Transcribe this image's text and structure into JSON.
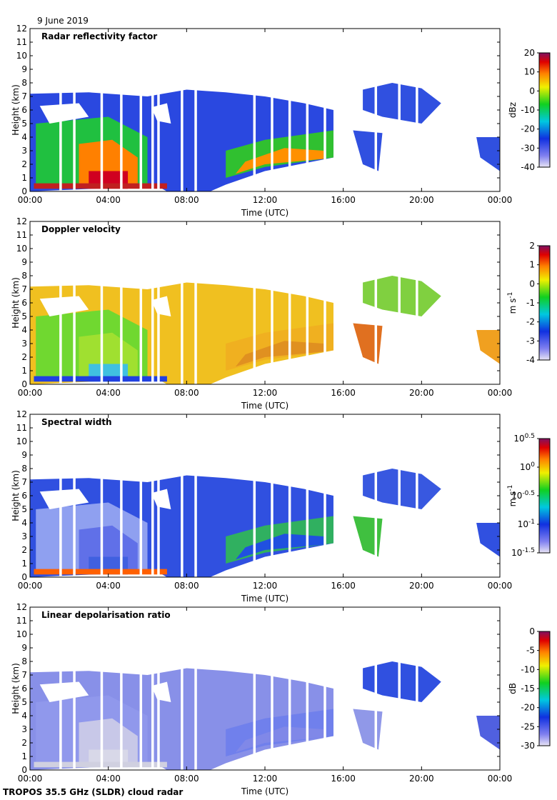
{
  "date": "9 June 2019",
  "footer": "TROPOS 35.5 GHz (SLDR) cloud radar",
  "chart_data": [
    {
      "type": "heatmap",
      "title": "Radar reflectivity factor",
      "xlabel": "Time (UTC)",
      "ylabel": "Height (km)",
      "xlim": [
        0,
        24
      ],
      "xticks": [
        {
          "value": 0,
          "label": "00:00"
        },
        {
          "value": 4,
          "label": "04:00"
        },
        {
          "value": 8,
          "label": "08:00"
        },
        {
          "value": 12,
          "label": "12:00"
        },
        {
          "value": 16,
          "label": "16:00"
        },
        {
          "value": 20,
          "label": "20:00"
        },
        {
          "value": 24,
          "label": "00:00"
        }
      ],
      "ylim": [
        0,
        12
      ],
      "yticks": [
        0,
        1,
        2,
        3,
        4,
        5,
        6,
        7,
        8,
        9,
        10,
        11,
        12
      ],
      "colorbar": {
        "label": "dBz",
        "lim": [
          -40,
          20
        ],
        "ticks": [
          -40,
          -30,
          -20,
          -10,
          0,
          10,
          20
        ]
      }
    },
    {
      "type": "heatmap",
      "title": "Doppler velocity",
      "xlabel": "Time (UTC)",
      "ylabel": "Height (km)",
      "xlim": [
        0,
        24
      ],
      "xticks": [
        {
          "value": 0,
          "label": "00:00"
        },
        {
          "value": 4,
          "label": "04:00"
        },
        {
          "value": 8,
          "label": "08:00"
        },
        {
          "value": 12,
          "label": "12:00"
        },
        {
          "value": 16,
          "label": "16:00"
        },
        {
          "value": 20,
          "label": "20:00"
        },
        {
          "value": 24,
          "label": "00:00"
        }
      ],
      "ylim": [
        0,
        12
      ],
      "yticks": [
        0,
        1,
        2,
        3,
        4,
        5,
        6,
        7,
        8,
        9,
        10,
        11,
        12
      ],
      "colorbar": {
        "label": "m s",
        "label_superscript": "-1",
        "lim": [
          -4,
          2
        ],
        "ticks": [
          -4,
          -3,
          -2,
          -1,
          0,
          1,
          2
        ]
      }
    },
    {
      "type": "heatmap",
      "title": "Spectral width",
      "xlabel": "Time (UTC)",
      "ylabel": "Height (km)",
      "xlim": [
        0,
        24
      ],
      "xticks": [
        {
          "value": 0,
          "label": "00:00"
        },
        {
          "value": 4,
          "label": "04:00"
        },
        {
          "value": 8,
          "label": "08:00"
        },
        {
          "value": 12,
          "label": "12:00"
        },
        {
          "value": 16,
          "label": "16:00"
        },
        {
          "value": 20,
          "label": "20:00"
        },
        {
          "value": 24,
          "label": "00:00"
        }
      ],
      "ylim": [
        0,
        12
      ],
      "yticks": [
        0,
        1,
        2,
        3,
        4,
        5,
        6,
        7,
        8,
        9,
        10,
        11,
        12
      ],
      "colorbar": {
        "label": "m s",
        "label_superscript": "-1",
        "log_scale": true,
        "lim": [
          -1.5,
          0.5
        ],
        "ticks": [
          {
            "value": -1.5,
            "label": "10"
          },
          {
            "value": -1,
            "label": "10"
          },
          {
            "value": -0.5,
            "label": "10"
          },
          {
            "value": 0,
            "label": "10"
          },
          {
            "value": 0.5,
            "label": "10"
          }
        ]
      }
    },
    {
      "type": "heatmap",
      "title": "Linear depolarisation ratio",
      "xlabel": "Time (UTC)",
      "ylabel": "Height (km)",
      "xlim": [
        0,
        24
      ],
      "xticks": [
        {
          "value": 0,
          "label": "00:00"
        },
        {
          "value": 4,
          "label": "04:00"
        },
        {
          "value": 8,
          "label": "08:00"
        },
        {
          "value": 12,
          "label": "12:00"
        },
        {
          "value": 16,
          "label": "16:00"
        },
        {
          "value": 20,
          "label": "20:00"
        },
        {
          "value": 24,
          "label": "00:00"
        }
      ],
      "ylim": [
        0,
        12
      ],
      "yticks": [
        0,
        1,
        2,
        3,
        4,
        5,
        6,
        7,
        8,
        9,
        10,
        11,
        12
      ],
      "colorbar": {
        "label": "dB",
        "lim": [
          -30,
          0
        ],
        "ticks": [
          -30,
          -25,
          -20,
          -15,
          -10,
          -5,
          0
        ]
      }
    }
  ]
}
